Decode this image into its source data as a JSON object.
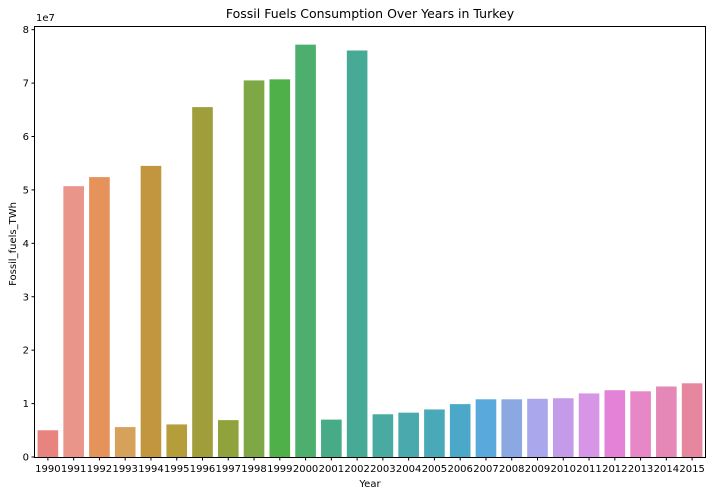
{
  "chart_data": {
    "type": "bar",
    "title": "Fossil Fuels Consumption Over Years in Turkey",
    "xlabel": "Year",
    "ylabel": "Fossil_fuels_TWh",
    "y_scale_label": "1e7",
    "ylim": [
      0,
      80500000
    ],
    "yticks": [
      0,
      10000000,
      20000000,
      30000000,
      40000000,
      50000000,
      60000000,
      70000000,
      80000000
    ],
    "ytick_labels": [
      "0",
      "1",
      "2",
      "3",
      "4",
      "5",
      "6",
      "7",
      "8"
    ],
    "grid": false,
    "legend": "none",
    "categories": [
      "1990",
      "1991",
      "1992",
      "1993",
      "1994",
      "1995",
      "1996",
      "1997",
      "1998",
      "1999",
      "2000",
      "2001",
      "2002",
      "2003",
      "2004",
      "2005",
      "2006",
      "2007",
      "2008",
      "2009",
      "2010",
      "2011",
      "2012",
      "2013",
      "2014",
      "2015"
    ],
    "values": [
      5000000,
      50700000,
      52400000,
      5600000,
      54500000,
      6100000,
      65500000,
      6900000,
      70500000,
      70700000,
      77200000,
      7000000,
      76100000,
      8000000,
      8300000,
      8900000,
      9900000,
      10800000,
      10800000,
      10900000,
      11000000,
      11900000,
      12500000,
      12300000,
      13200000,
      13800000
    ],
    "colors": [
      "#e8837f",
      "#ea9589",
      "#e5925b",
      "#d5a15b",
      "#c1963e",
      "#b69d3c",
      "#a09d3b",
      "#8fa23b",
      "#7ea845",
      "#4fb04a",
      "#4caf6e",
      "#46ab86",
      "#47aa96",
      "#48aaa1",
      "#49a9ac",
      "#4aa9b9",
      "#4ca8c8",
      "#59a9dd",
      "#8ca8e3",
      "#aba7ec",
      "#c49be8",
      "#d795e6",
      "#e482d8",
      "#e787c8",
      "#e688b7",
      "#e7879f"
    ]
  }
}
